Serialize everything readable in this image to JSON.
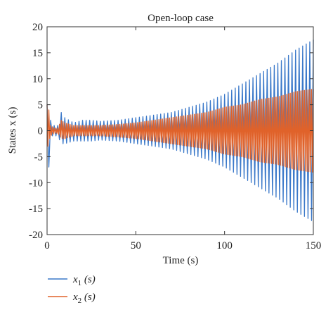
{
  "chart_data": {
    "type": "line",
    "title": "Open-loop case",
    "xlabel": "Time (s)",
    "ylabel": "States x (s)",
    "xlim": [
      0,
      150
    ],
    "ylim": [
      -20,
      20
    ],
    "xticks": [
      0,
      50,
      100,
      150
    ],
    "yticks": [
      -20,
      -15,
      -10,
      -5,
      0,
      5,
      10,
      15,
      20
    ],
    "grid": false,
    "legend_position": "bottom-left, below plot",
    "series": [
      {
        "name": "x1 (s)",
        "name_main": "x",
        "name_sub": "1",
        "name_rest": " (s)",
        "color": "#3a78c9",
        "oscillation_period_s": 2.0,
        "envelope": {
          "t": [
            0,
            1,
            2,
            4,
            6,
            8,
            10,
            15,
            20,
            25,
            30,
            40,
            50,
            60,
            70,
            80,
            90,
            100,
            110,
            120,
            130,
            140,
            145,
            150
          ],
          "upper": [
            5,
            7,
            2,
            1,
            1,
            3.5,
            2.5,
            1.5,
            2,
            2,
            1.8,
            2,
            2.5,
            3,
            3.5,
            4.5,
            5.5,
            7,
            9,
            11,
            13,
            15.5,
            16.5,
            17.5
          ],
          "lower": [
            -5,
            -7,
            -1,
            -1,
            -1,
            -2.5,
            -2.5,
            -2,
            -2,
            -2,
            -1.8,
            -2,
            -2.5,
            -3,
            -3.5,
            -4.5,
            -5.5,
            -7,
            -9,
            -11,
            -13,
            -15.5,
            -16.5,
            -17.5
          ]
        }
      },
      {
        "name": "x2 (s)",
        "name_main": "x",
        "name_sub": "2",
        "name_rest": " (s)",
        "color": "#e0622a",
        "oscillation_period_s": 1.0,
        "envelope": {
          "t": [
            0,
            1,
            2,
            4,
            6,
            8,
            10,
            15,
            20,
            30,
            40,
            50,
            60,
            70,
            80,
            90,
            100,
            110,
            120,
            130,
            140,
            150
          ],
          "upper": [
            5,
            4,
            1,
            0.5,
            0.5,
            2,
            1.5,
            1,
            1,
            1,
            1.2,
            1.5,
            2,
            2.5,
            3,
            3.5,
            4.5,
            5,
            6,
            6.5,
            7.5,
            8
          ],
          "lower": [
            -4,
            -2,
            -1,
            -0.5,
            -0.5,
            -1.5,
            -1.5,
            -1,
            -1,
            -1,
            -1.2,
            -1.5,
            -2,
            -2.5,
            -3,
            -3.5,
            -4.5,
            -5,
            -6,
            -6.5,
            -7.5,
            -8
          ]
        }
      }
    ]
  }
}
